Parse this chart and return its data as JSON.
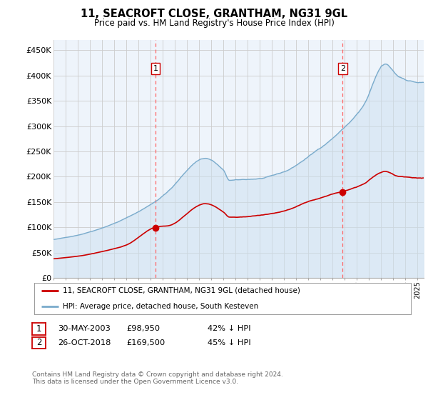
{
  "title": "11, SEACROFT CLOSE, GRANTHAM, NG31 9GL",
  "subtitle": "Price paid vs. HM Land Registry's House Price Index (HPI)",
  "ylabel_ticks": [
    "£0",
    "£50K",
    "£100K",
    "£150K",
    "£200K",
    "£250K",
    "£300K",
    "£350K",
    "£400K",
    "£450K"
  ],
  "ytick_values": [
    0,
    50000,
    100000,
    150000,
    200000,
    250000,
    300000,
    350000,
    400000,
    450000
  ],
  "ylim": [
    0,
    470000
  ],
  "sale1_date": 2003.41,
  "sale1_price": 98950,
  "sale2_date": 2018.82,
  "sale2_price": 169500,
  "marker_color": "#cc0000",
  "red_line_color": "#cc0000",
  "blue_line_color": "#7aabcc",
  "blue_fill_color": "#ddeeff",
  "vline_color": "#ff6666",
  "background_color": "#ffffff",
  "grid_color": "#cccccc",
  "legend_label_red": "11, SEACROFT CLOSE, GRANTHAM, NG31 9GL (detached house)",
  "legend_label_blue": "HPI: Average price, detached house, South Kesteven",
  "table_row1": [
    "1",
    "30-MAY-2003",
    "£98,950",
    "42% ↓ HPI"
  ],
  "table_row2": [
    "2",
    "26-OCT-2018",
    "£169,500",
    "45% ↓ HPI"
  ],
  "footer": "Contains HM Land Registry data © Crown copyright and database right 2024.\nThis data is licensed under the Open Government Licence v3.0.",
  "xmin": 1995.0,
  "xmax": 2025.5,
  "hpi_keypoints_x": [
    1995.0,
    1997.0,
    1999.0,
    2001.0,
    2003.5,
    2004.5,
    2007.5,
    2009.0,
    2009.5,
    2012.0,
    2014.0,
    2016.0,
    2018.8,
    2020.5,
    2022.3,
    2023.5,
    2025.5
  ],
  "hpi_keypoints_y": [
    76000,
    85000,
    100000,
    120000,
    155000,
    175000,
    240000,
    215000,
    195000,
    198000,
    210000,
    240000,
    295000,
    340000,
    420000,
    395000,
    385000
  ],
  "red_keypoints_x": [
    1995.0,
    1997.0,
    1999.0,
    2001.0,
    2003.41,
    2004.5,
    2007.5,
    2009.0,
    2009.5,
    2012.0,
    2014.0,
    2016.0,
    2018.82,
    2020.5,
    2022.3,
    2023.5,
    2025.5
  ],
  "red_keypoints_y": [
    38000,
    43000,
    52000,
    65000,
    98950,
    102000,
    145000,
    128000,
    118000,
    122000,
    130000,
    148000,
    169500,
    185000,
    210000,
    200000,
    198000
  ]
}
